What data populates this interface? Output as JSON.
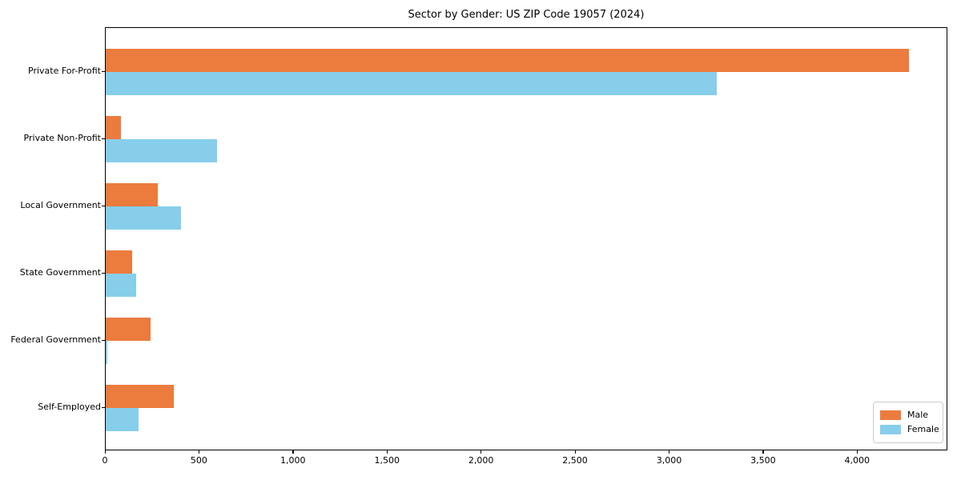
{
  "chart_data": {
    "type": "bar",
    "orientation": "horizontal",
    "title": "Sector by Gender: US ZIP Code 19057 (2024)",
    "categories": [
      "Private For-Profit",
      "Private Non-Profit",
      "Local Government",
      "State Government",
      "Federal Government",
      "Self-Employed"
    ],
    "series": [
      {
        "name": "Male",
        "color": "#EC7B3E",
        "values": [
          4281,
          81,
          277,
          139,
          237,
          361
        ]
      },
      {
        "name": "Female",
        "color": "#87CEEB",
        "values": [
          3254,
          595,
          400,
          161,
          10,
          176
        ]
      }
    ],
    "xlabel": "",
    "ylabel": "",
    "xlim": [
      0,
      4480
    ],
    "xticks": [
      0,
      500,
      1000,
      1500,
      2000,
      2500,
      3000,
      3500,
      4000
    ],
    "xtick_labels": [
      "0",
      "500",
      "1,000",
      "1,500",
      "2,000",
      "2,500",
      "3,000",
      "3,500",
      "4,000"
    ],
    "grid": "off",
    "legend": {
      "position": "lower right",
      "entries": [
        "Male",
        "Female"
      ]
    },
    "colors": {
      "male": "#EC7B3E",
      "female": "#87CEEB",
      "spine": "#000000",
      "legend_border": "#cccccc"
    }
  }
}
